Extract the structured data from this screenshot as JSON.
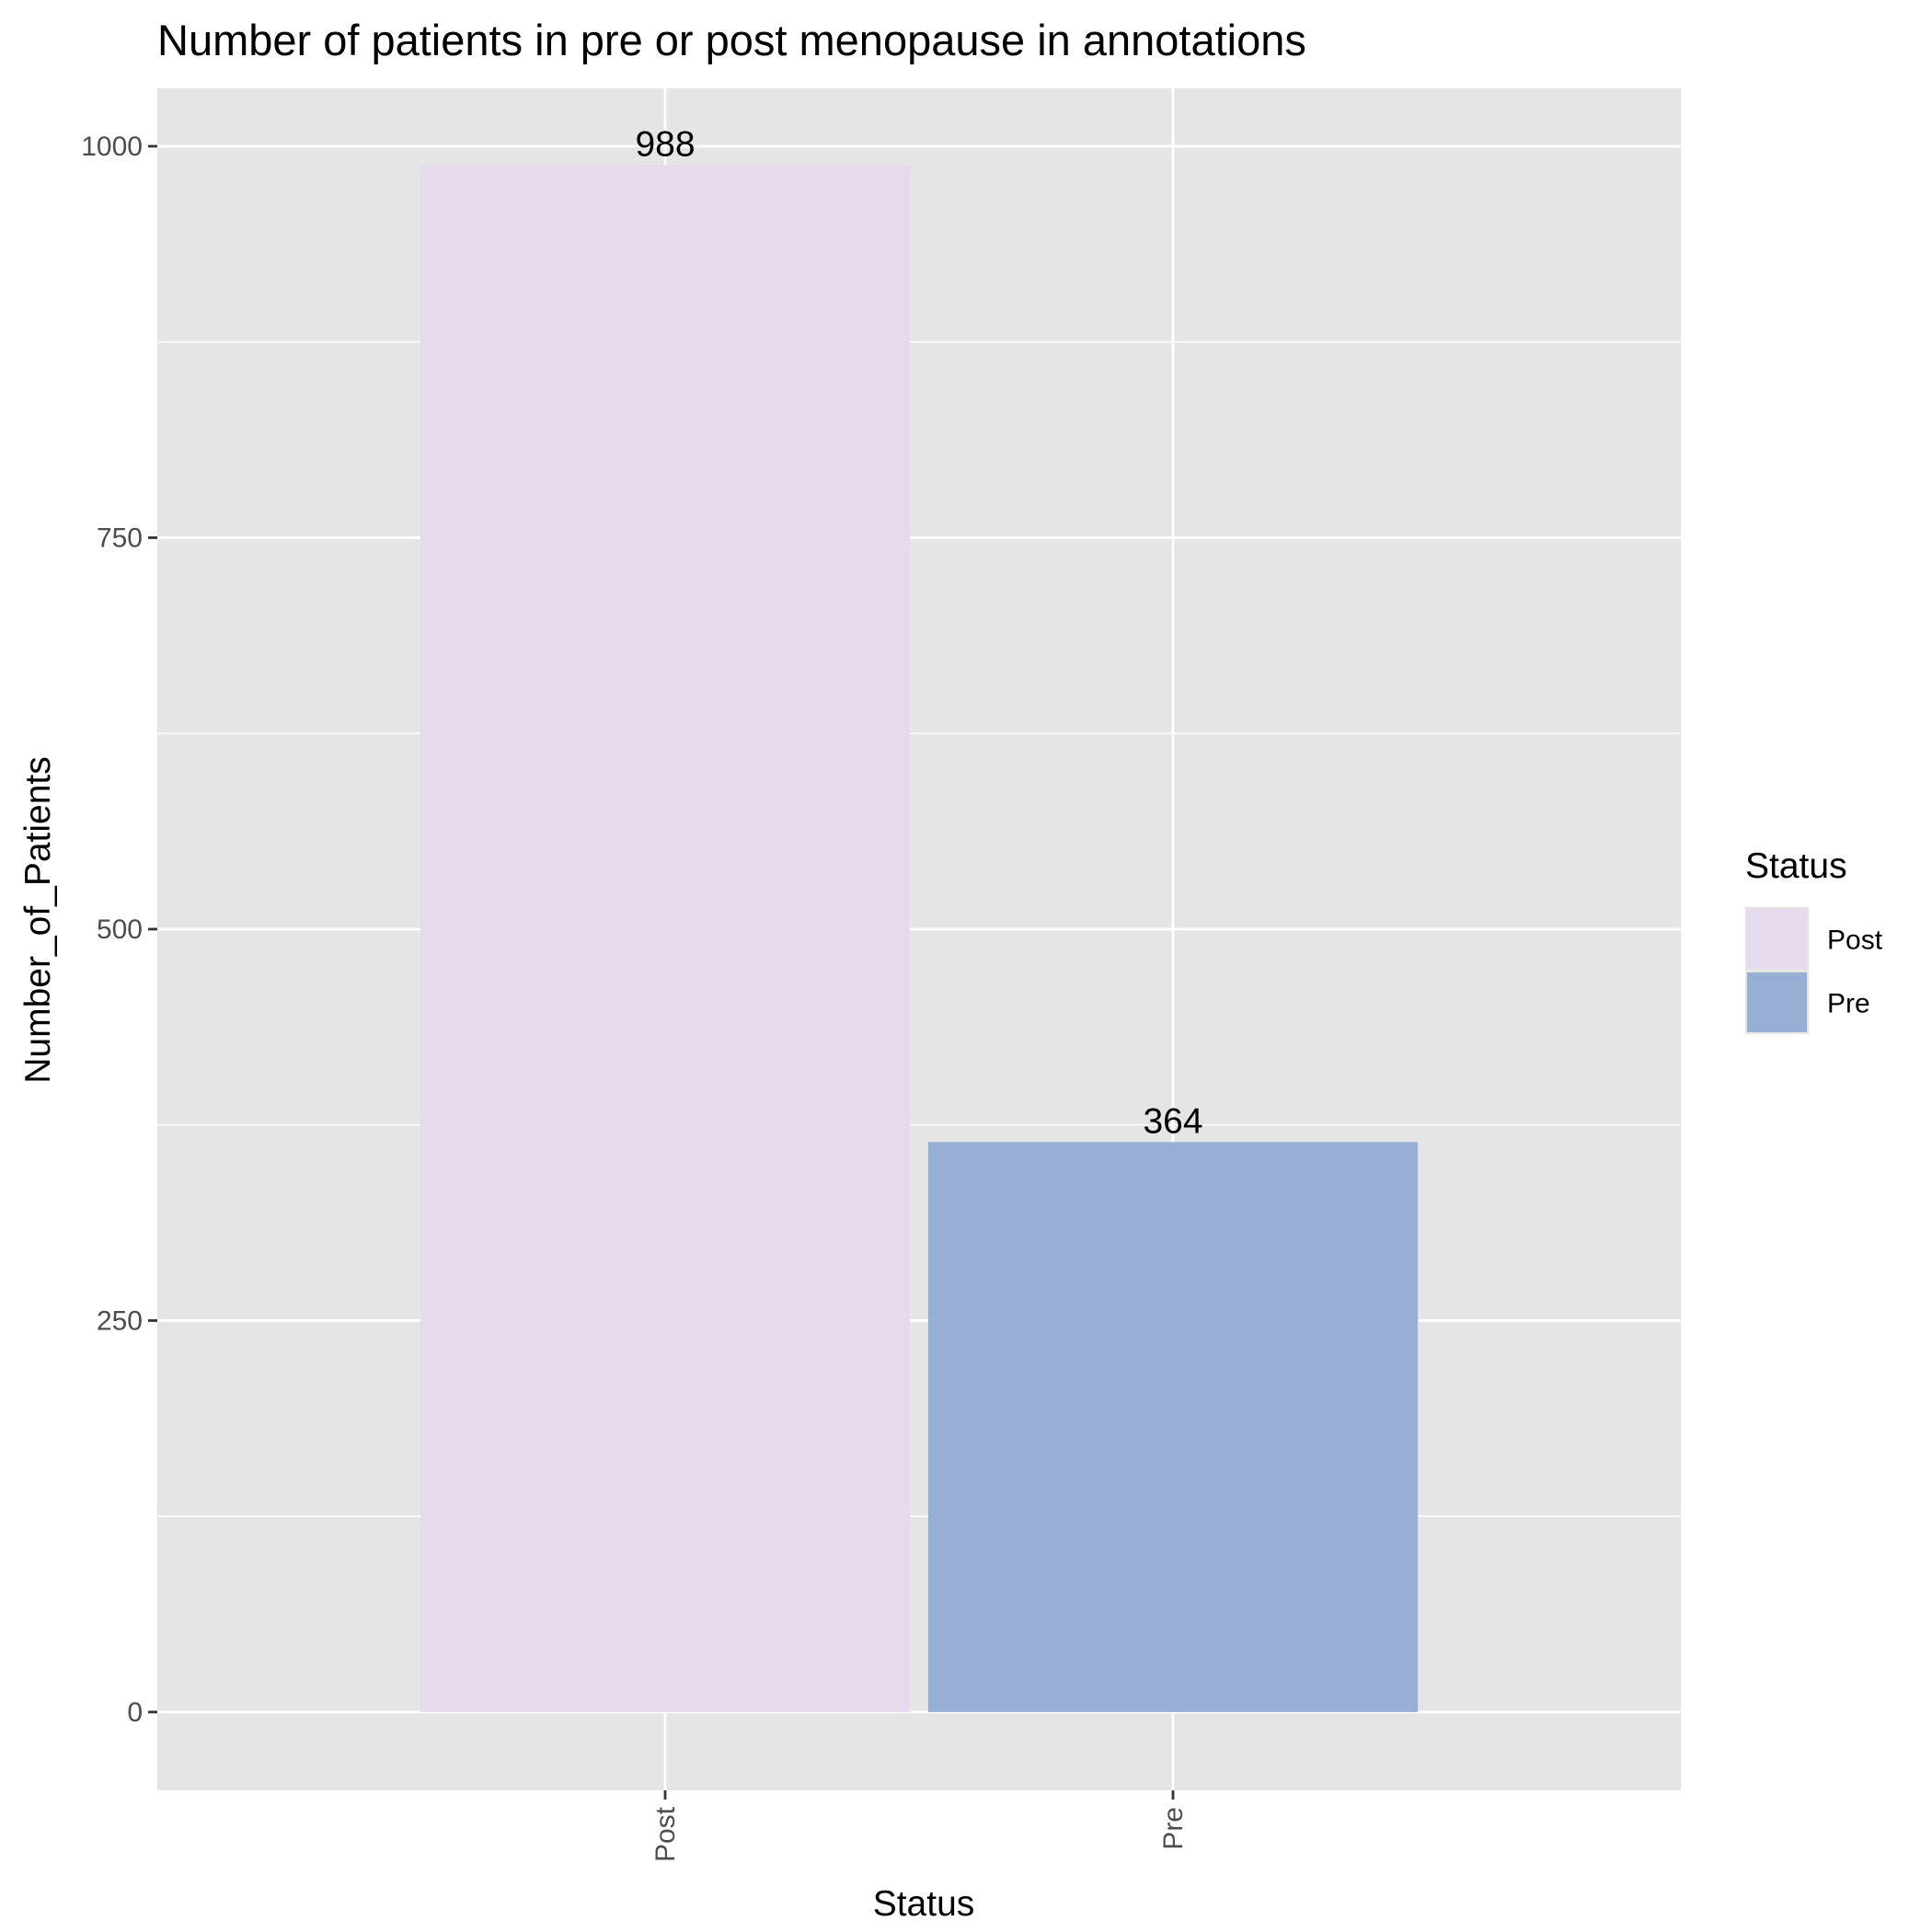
{
  "chart_data": {
    "type": "bar",
    "title": "Number of patients in pre or post menopause in annotations",
    "xlabel": "Status",
    "ylabel": "Number_of_Patients",
    "categories": [
      "Post",
      "Pre"
    ],
    "values": [
      988,
      364
    ],
    "data_labels": [
      "988",
      "364"
    ],
    "ylim": [
      -50,
      1037
    ],
    "yticks": [
      0,
      250,
      500,
      750,
      1000
    ],
    "ytick_labels": [
      "0",
      "250",
      "500",
      "750",
      "1000"
    ],
    "minor_yticks": [
      125,
      375,
      625,
      875
    ],
    "grid": true,
    "x_tick_rotation": "vertical",
    "legend": {
      "title": "Status",
      "placement": "right",
      "entries": [
        {
          "label": "Post",
          "color": "#e6dbec"
        },
        {
          "label": "Pre",
          "color": "#98afd5"
        }
      ]
    },
    "colors": {
      "panel_background": "#e5e5e5",
      "grid_line": "#ffffff",
      "tick_text": "#4d4d4d",
      "tick_mark": "#333333"
    }
  }
}
